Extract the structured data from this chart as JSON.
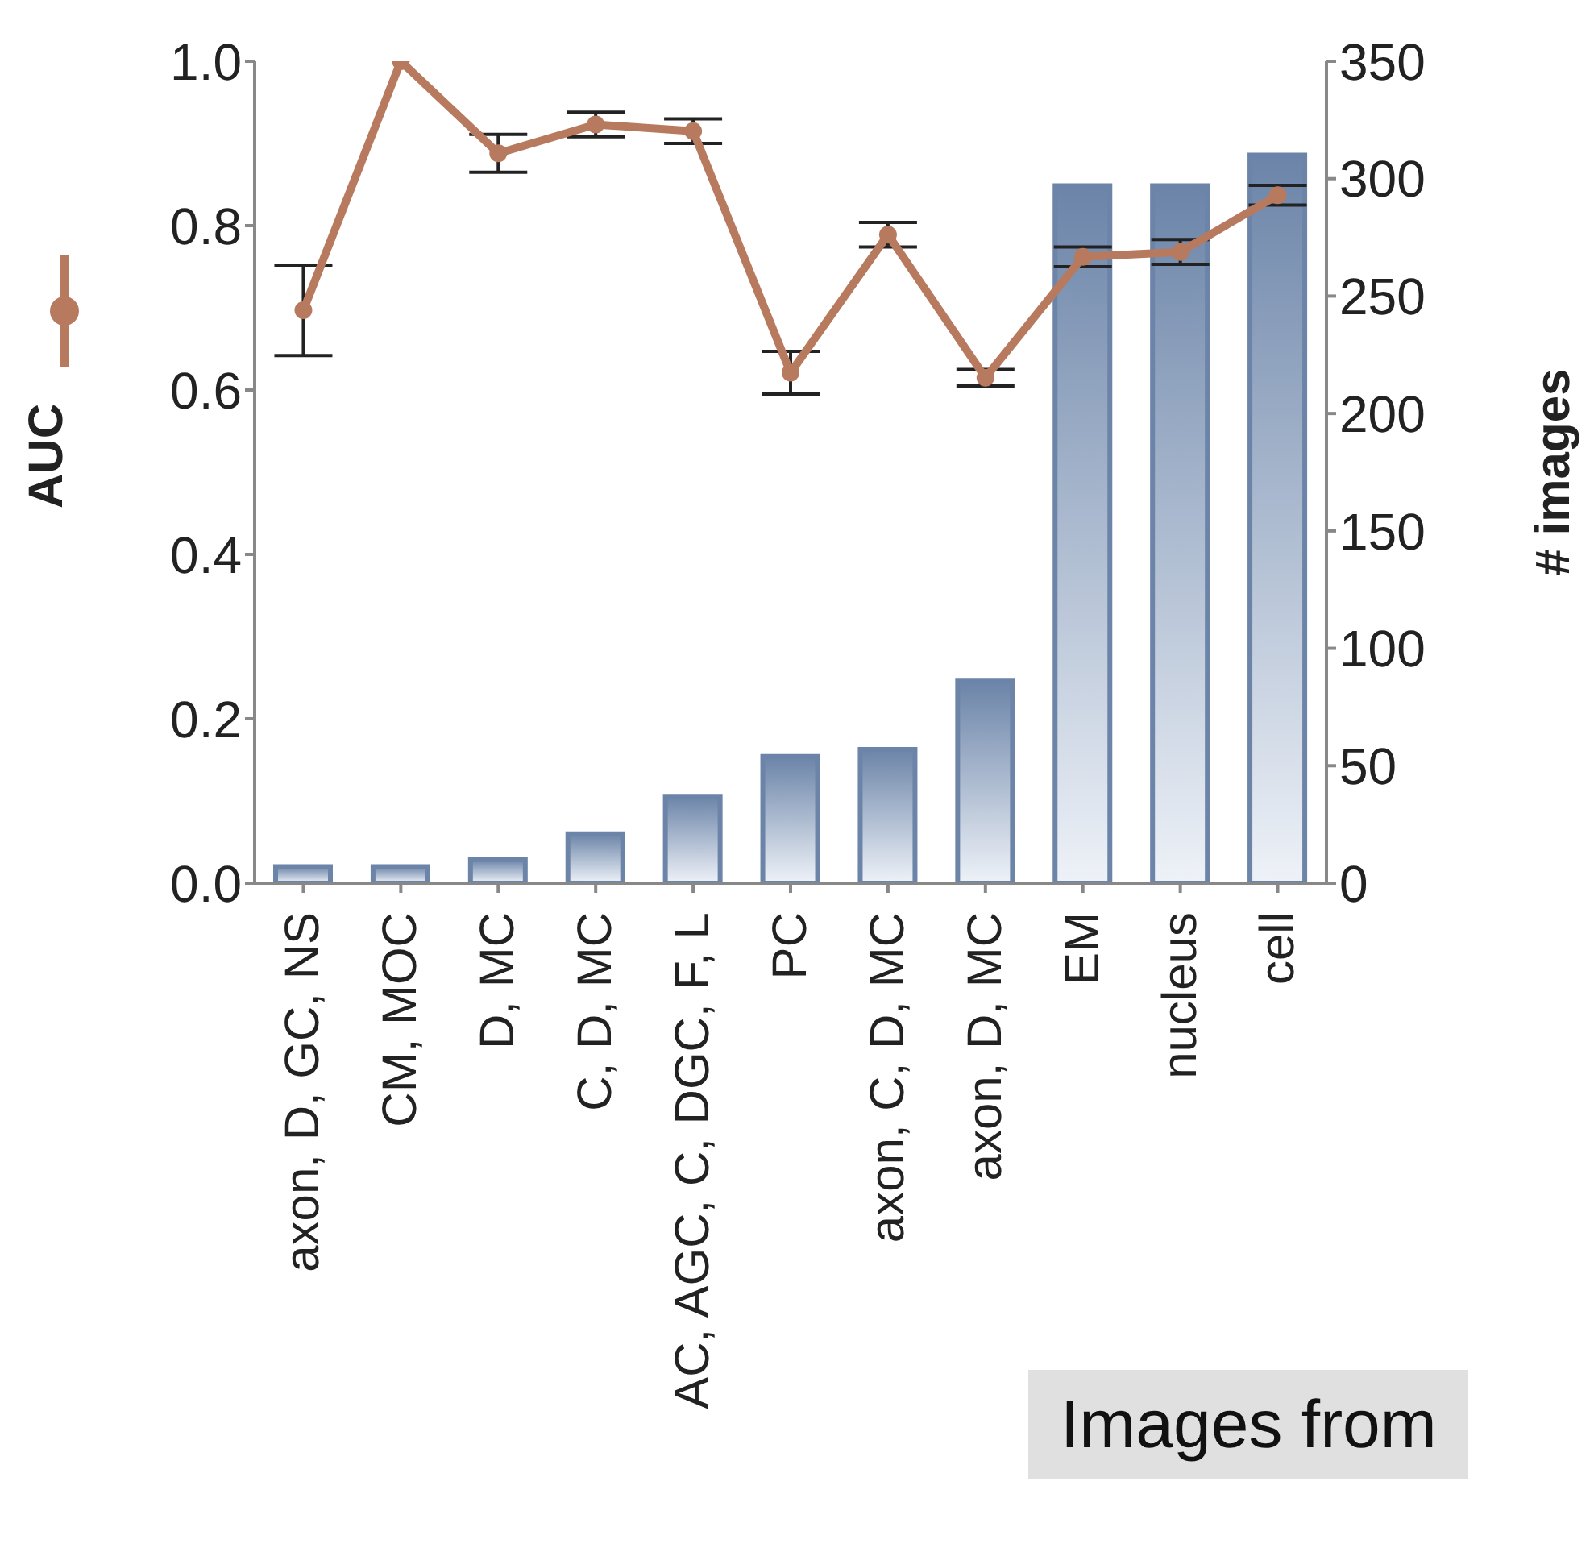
{
  "chart_data": {
    "type": "bar",
    "ylabel": "AUC",
    "y2label": "# images",
    "categories": [
      "axon, D, GC, NS",
      "CM, MOC",
      "D, MC",
      "C, D, MC",
      "AC, AGC, C, DGC, F, L",
      "PC",
      "axon, C, D, MC",
      "axon, D, MC",
      "EM",
      "nucleus",
      "cell"
    ],
    "series": [
      {
        "axis": "y2",
        "color": "#6b84a8",
        "values": [
          7,
          7,
          10,
          21,
          37,
          54,
          57,
          86,
          297,
          297,
          310
        ]
      },
      {
        "type": "line",
        "axis": "y",
        "color": "#b87a5f",
        "values": [
          0.697,
          1.0,
          0.888,
          0.923,
          0.915,
          0.621,
          0.789,
          0.615,
          0.762,
          0.768,
          0.837
        ],
        "errors": [
          0.055,
          null,
          0.023,
          0.015,
          0.015,
          0.026,
          0.015,
          0.01,
          0.012,
          0.015,
          0.012
        ]
      }
    ],
    "ylim": [
      0,
      1
    ],
    "yticks": [
      {
        "value": 0,
        "label": "0.0"
      },
      0.2,
      0.4,
      0.6,
      0.8,
      {
        "value": 1,
        "label": "1.0"
      }
    ],
    "y2lim": [
      0,
      350
    ],
    "y2ticks": [
      0,
      50,
      100,
      150,
      200,
      250,
      300,
      350
    ],
    "grid": false,
    "legend": false,
    "marker": "circle",
    "line_style": "solid",
    "annotations": [
      "Images from"
    ]
  }
}
